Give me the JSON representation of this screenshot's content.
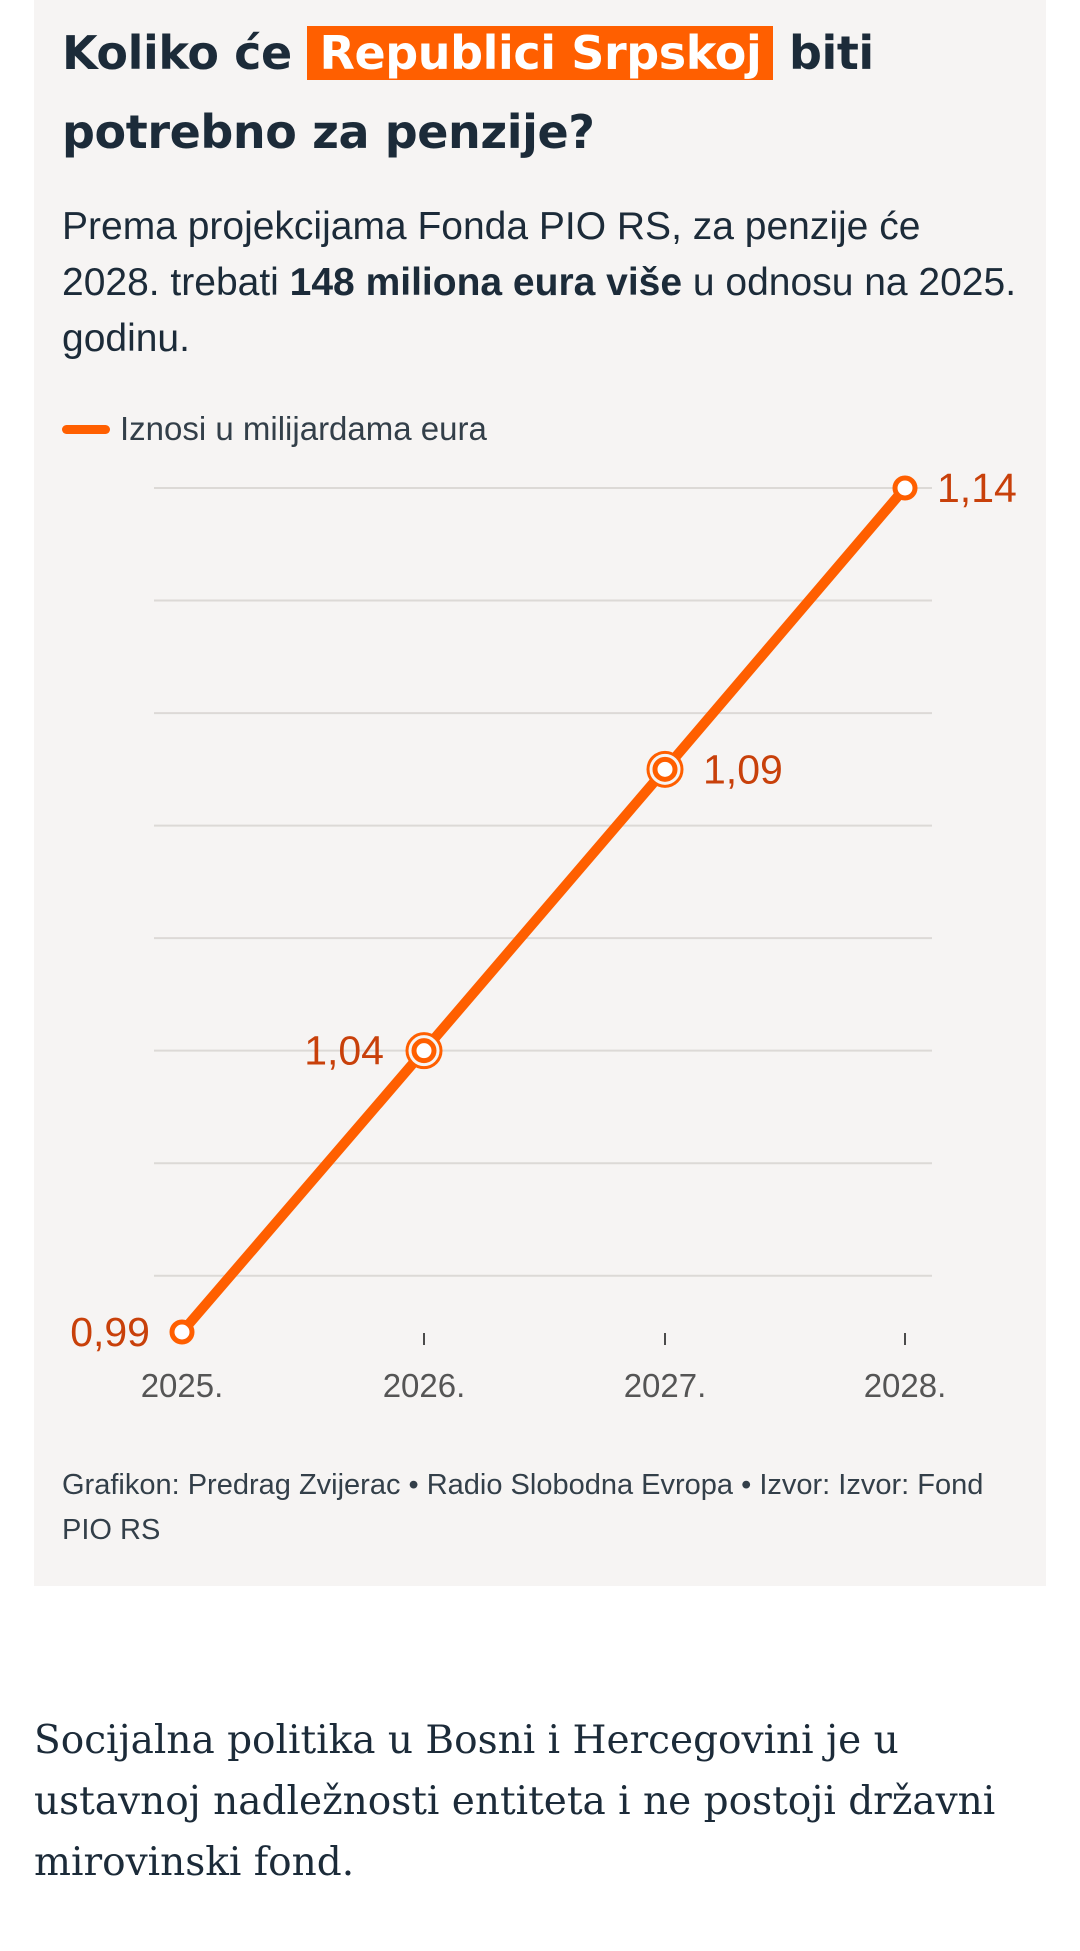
{
  "headline": {
    "before": "Koliko će",
    "highlight": "Republici Srpskoj",
    "after": "biti potrebno za penzije?"
  },
  "subtitle": {
    "before": "Prema projekcijama Fonda PIO RS, za penzije će 2028. trebati",
    "bold": "148 miliona eura više",
    "after": "u odnosu na 2025. godinu."
  },
  "chart_data": {
    "type": "line",
    "categories": [
      "2025.",
      "2026.",
      "2027.",
      "2028."
    ],
    "series": [
      {
        "name": "Iznosi u milijardama eura",
        "values": [
          0.99,
          1.04,
          1.09,
          1.14
        ],
        "labels": [
          "0,99",
          "1,04",
          "1,09",
          "1,14"
        ],
        "color": "#ff5f00"
      }
    ],
    "ylim": [
      0.99,
      1.14
    ],
    "grid": true,
    "legend_position": "top-left",
    "label_color": "#c8400a"
  },
  "credits": "Grafikon: Predrag Zvijerac • Radio Slobodna Evropa • Izvor: Izvor: Fond PIO RS",
  "body_text": "Socijalna politika u Bosni i Hercegovini je u ustavnoj nadležnosti entiteta i ne postoji državni mirovinski fond.",
  "colors": {
    "accent": "#ff5f00",
    "text": "#1c2b39",
    "card_background": "#f6f4f3"
  }
}
